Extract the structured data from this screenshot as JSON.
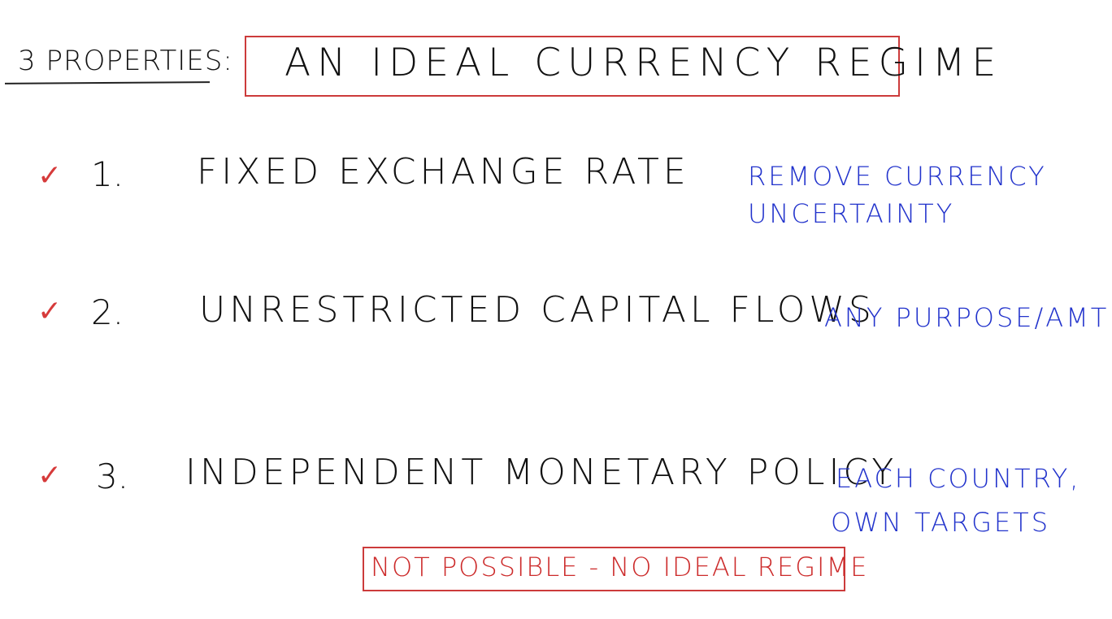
{
  "header": {
    "label": "3 PROPERTIES:",
    "title": "AN IDEAL CURRENCY REGIME"
  },
  "check_glyph": "✓",
  "properties": [
    {
      "number": "1.",
      "name": "FIXED EXCHANGE RATE",
      "note_lines": [
        "REMOVE CURRENCY",
        "UNCERTAINTY"
      ]
    },
    {
      "number": "2.",
      "name": "UNRESTRICTED CAPITAL FLOWS",
      "note_lines": [
        "ANY PURPOSE/AMT"
      ]
    },
    {
      "number": "3.",
      "name": "INDEPENDENT MONETARY POLICY",
      "note_lines": [
        "EACH COUNTRY,",
        "OWN TARGETS"
      ]
    }
  ],
  "conclusion": "NOT POSSIBLE - NO IDEAL REGIME",
  "colors": {
    "ink": "#111111",
    "red": "#cc3b3b",
    "blue": "#2233cc"
  }
}
